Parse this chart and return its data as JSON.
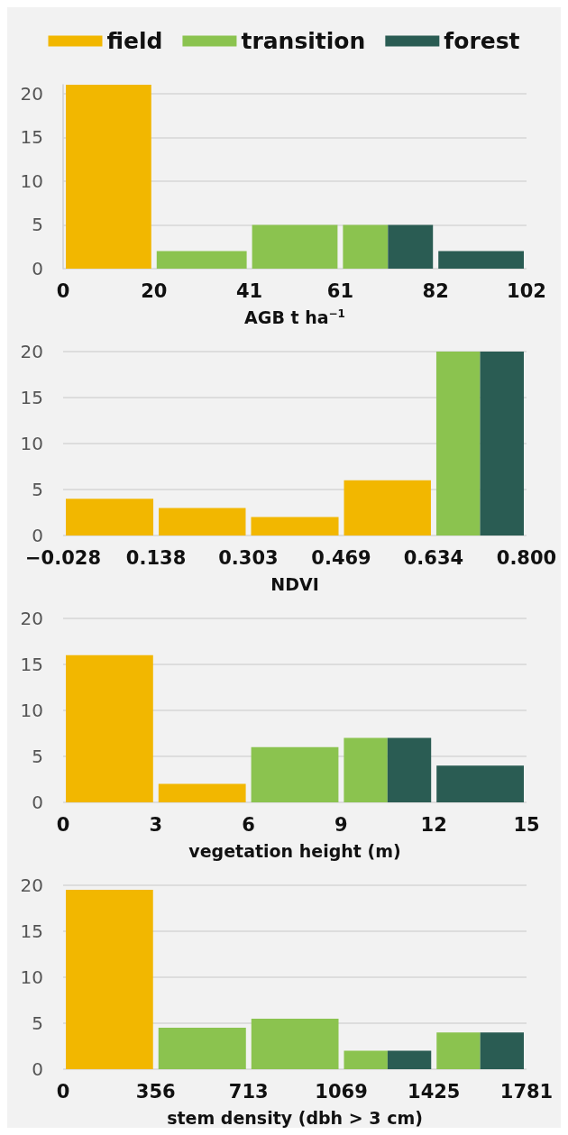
{
  "chart_data": [
    {
      "type": "histogram",
      "xlabel": "AGB t ha$^{−1}$",
      "bins": [
        0,
        20,
        41,
        61,
        82,
        102
      ],
      "xlim": [
        0,
        102
      ],
      "xticks": [
        0,
        20,
        41,
        61,
        82,
        102
      ],
      "ylim": [
        0,
        21
      ],
      "yticks": [
        0,
        5,
        10,
        15,
        20
      ],
      "grid": "y",
      "legend": "top",
      "series": [
        {
          "name": "field",
          "color": "#f2b700",
          "values": [
            21,
            null,
            null,
            null,
            null
          ]
        },
        {
          "name": "transition",
          "color": "#8bc34f",
          "values": [
            null,
            2,
            5,
            5,
            null
          ]
        },
        {
          "name": "forest",
          "color": "#2a5c53",
          "values": [
            null,
            null,
            null,
            5,
            2
          ]
        }
      ]
    },
    {
      "type": "histogram",
      "xlabel": "NDVI",
      "bins": [
        -0.028,
        0.138,
        0.303,
        0.469,
        0.634,
        0.8
      ],
      "xlim": [
        -0.028,
        0.8
      ],
      "xticks": [
        {
          "value": -0.028,
          "label": "−0.028"
        },
        0.138,
        0.303,
        0.469,
        0.634,
        {
          "value": 0.8,
          "label": "0.800"
        }
      ],
      "ylim": [
        0,
        20
      ],
      "yticks": [
        0,
        5,
        10,
        15,
        20
      ],
      "grid": "y",
      "series": [
        {
          "color": "#f2b700",
          "values": [
            4,
            3,
            2,
            6,
            null
          ]
        },
        {
          "color": "#8bc34f",
          "values": [
            null,
            null,
            null,
            null,
            20
          ]
        },
        {
          "color": "#2a5c53",
          "values": [
            null,
            null,
            null,
            null,
            20
          ]
        }
      ]
    },
    {
      "type": "histogram",
      "xlabel": "vegetation height (m)",
      "bins": [
        0,
        3,
        6,
        9,
        12,
        15
      ],
      "xlim": [
        0,
        15
      ],
      "xticks": [
        0,
        3,
        6,
        9,
        12,
        15
      ],
      "ylim": [
        0,
        20
      ],
      "yticks": [
        0,
        5,
        10,
        15,
        20
      ],
      "grid": "y",
      "series": [
        {
          "color": "#f2b700",
          "values": [
            16,
            2,
            null,
            null,
            null
          ]
        },
        {
          "color": "#8bc34f",
          "values": [
            null,
            null,
            6,
            7,
            null
          ]
        },
        {
          "color": "#2a5c53",
          "values": [
            null,
            null,
            null,
            7,
            4
          ]
        }
      ]
    },
    {
      "type": "histogram",
      "xlabel": "stem density (dbh > 3 cm)",
      "bins": [
        0,
        356,
        713,
        1069,
        1425,
        1781
      ],
      "xlim": [
        0,
        1781
      ],
      "xticks": [
        0,
        356,
        713,
        1069,
        1425,
        1781
      ],
      "ylim": [
        0,
        20
      ],
      "yticks": [
        0,
        5,
        10,
        15,
        20
      ],
      "grid": "y",
      "series": [
        {
          "color": "#f2b700",
          "values": [
            19.5,
            null,
            null,
            null,
            null
          ]
        },
        {
          "color": "#8bc34f",
          "values": [
            null,
            4.5,
            5.5,
            2,
            4
          ]
        },
        {
          "color": "#2a5c53",
          "values": [
            null,
            null,
            null,
            2,
            4
          ]
        }
      ]
    }
  ]
}
